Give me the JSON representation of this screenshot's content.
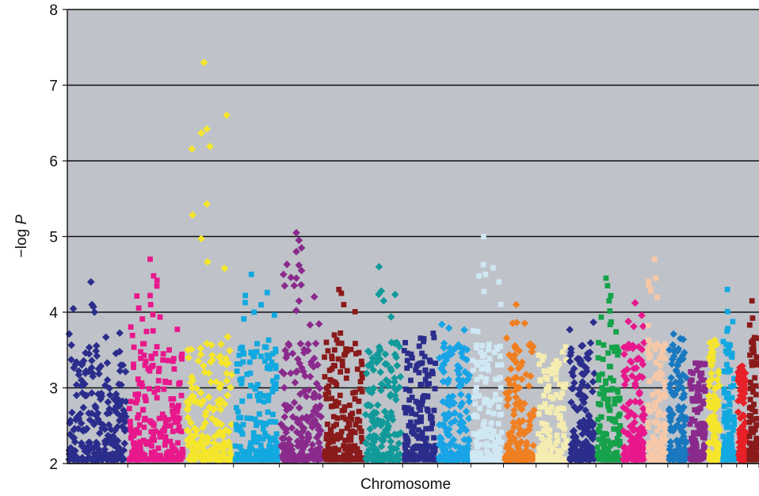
{
  "chart_data": {
    "type": "scatter",
    "title": "",
    "xlabel": "Chromosome",
    "ylabel_prefix": "−log ",
    "ylabel_var": "P",
    "ylim": [
      2,
      8
    ],
    "yticks": [
      "2",
      "3",
      "4",
      "5",
      "6",
      "7",
      "8"
    ],
    "grid": "horizontal",
    "background": "#bfc3c9",
    "series_colors": [
      "#2b2d8c",
      "#e8188c",
      "#f5e62c",
      "#12a8e0",
      "#8a2a8c",
      "#8b1a1a",
      "#129a9a",
      "#2b2d8c",
      "#18a4e6",
      "#cfe8f4",
      "#f07f22",
      "#f4ecb0",
      "#2b2d8c",
      "#16a24a",
      "#e8188c",
      "#f7c8a8",
      "#1a78c0",
      "#8a2a8c",
      "#f5e62c",
      "#12a8e0",
      "#e82028",
      "#8b1a1a"
    ],
    "chromosome_sizes": [
      1.0,
      0.95,
      0.8,
      0.76,
      0.72,
      0.68,
      0.64,
      0.58,
      0.55,
      0.54,
      0.54,
      0.53,
      0.46,
      0.43,
      0.4,
      0.36,
      0.34,
      0.31,
      0.24,
      0.25,
      0.18,
      0.19
    ],
    "chromosome_max": [
      4.4,
      4.7,
      7.3,
      4.5,
      5.05,
      4.3,
      4.6,
      4.0,
      4.0,
      5.0,
      4.1,
      3.7,
      4.05,
      4.45,
      4.35,
      4.7,
      3.85,
      3.4,
      3.85,
      4.3,
      3.3,
      4.15
    ],
    "peaks": [
      {
        "chromosome": 3,
        "values": [
          7.3,
          5.43
        ]
      },
      {
        "chromosome": 5,
        "values": [
          5.05,
          4.95,
          4.85,
          4.8,
          4.62,
          4.55,
          4.45
        ]
      },
      {
        "chromosome": 10,
        "values": [
          5.0,
          4.5
        ]
      },
      {
        "chromosome": 2,
        "values": [
          4.7,
          4.48,
          4.42,
          4.22
        ]
      },
      {
        "chromosome": 7,
        "values": [
          4.6,
          4.28,
          4.15
        ]
      },
      {
        "chromosome": 16,
        "values": [
          4.7,
          4.45,
          4.2
        ]
      },
      {
        "chromosome": 14,
        "values": [
          4.45,
          4.35,
          4.15
        ]
      },
      {
        "chromosome": 1,
        "values": [
          4.4,
          4.0
        ]
      },
      {
        "chromosome": 4,
        "values": [
          4.5,
          4.0
        ]
      },
      {
        "chromosome": 6,
        "values": [
          4.3,
          4.25,
          4.1
        ]
      },
      {
        "chromosome": 20,
        "values": [
          4.3
        ]
      },
      {
        "chromosome": 22,
        "values": [
          4.15
        ]
      },
      {
        "chromosome": 11,
        "values": [
          4.1
        ]
      }
    ]
  }
}
